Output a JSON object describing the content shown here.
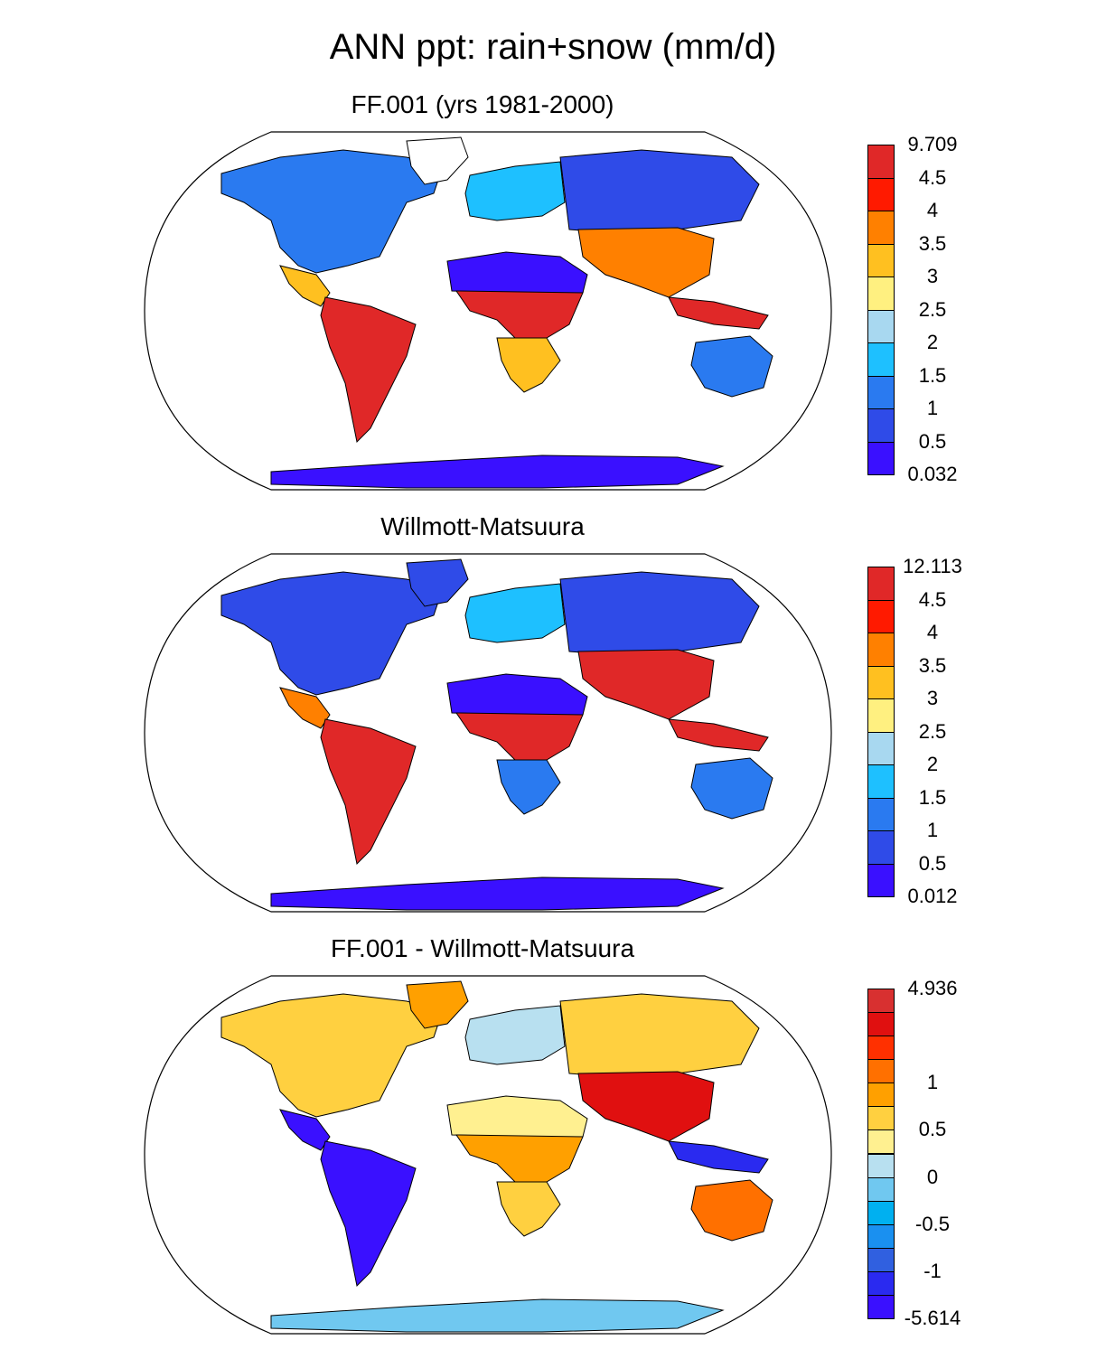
{
  "figure": {
    "title": "ANN ppt: rain+snow (mm/d)"
  },
  "panels": [
    {
      "title": "FF.001 (yrs 1981-2000)",
      "colorbar": {
        "colors": [
          "#3a10ff",
          "#2f4be8",
          "#2a7af0",
          "#1ec0ff",
          "#a8d8f0",
          "#fff080",
          "#ffc020",
          "#ff8000",
          "#ff1a00",
          "#e02828"
        ],
        "labels": [
          "0.032",
          "0.5",
          "1",
          "1.5",
          "2",
          "2.5",
          "3",
          "3.5",
          "4",
          "4.5",
          "9.709"
        ]
      },
      "regions": {
        "north-america": "#2a7af0",
        "greenland": "#ffffff",
        "central-america": "#ffc020",
        "south-america": "#e02828",
        "africa-north": "#3a10ff",
        "africa-central": "#e02828",
        "africa-south": "#ffc020",
        "europe": "#1ec0ff",
        "asia-north": "#2f4be8",
        "asia-south": "#ff8000",
        "indonesia": "#e02828",
        "australia": "#2a7af0",
        "antarctica": "#3a10ff"
      }
    },
    {
      "title": "Willmott-Matsuura",
      "colorbar": {
        "colors": [
          "#3a10ff",
          "#2f4be8",
          "#2a7af0",
          "#1ec0ff",
          "#a8d8f0",
          "#fff080",
          "#ffc020",
          "#ff8000",
          "#ff1a00",
          "#e02828"
        ],
        "labels": [
          "0.012",
          "0.5",
          "1",
          "1.5",
          "2",
          "2.5",
          "3",
          "3.5",
          "4",
          "4.5",
          "12.113"
        ]
      },
      "regions": {
        "north-america": "#2f4be8",
        "greenland": "#2f4be8",
        "central-america": "#ff8000",
        "south-america": "#e02828",
        "africa-north": "#3a10ff",
        "africa-central": "#e02828",
        "africa-south": "#2a7af0",
        "europe": "#1ec0ff",
        "asia-north": "#2f4be8",
        "asia-south": "#e02828",
        "indonesia": "#e02828",
        "australia": "#2a7af0",
        "antarctica": "#3a10ff"
      }
    },
    {
      "title": "FF.001 - Willmott-Matsuura",
      "colorbar": {
        "colors": [
          "#3a10ff",
          "#2a2af0",
          "#3060e0",
          "#1a90f0",
          "#00b0f0",
          "#70c8f0",
          "#b8e0f0",
          "#fff090",
          "#ffd040",
          "#ffa000",
          "#ff7000",
          "#ff3000",
          "#e01010",
          "#d83030"
        ],
        "labels": [
          "-5.614",
          "-1",
          "-0.5",
          "0",
          "0.5",
          "1",
          "4.936"
        ],
        "label_positions": [
          0,
          2,
          4,
          6,
          8,
          10,
          14
        ]
      },
      "regions": {
        "north-america": "#ffd040",
        "greenland": "#ffa000",
        "central-america": "#3a10ff",
        "south-america": "#3a10ff",
        "africa-north": "#fff090",
        "africa-central": "#ffa000",
        "africa-south": "#ffd040",
        "europe": "#b8e0f0",
        "asia-north": "#ffd040",
        "asia-south": "#e01010",
        "indonesia": "#2a2af0",
        "australia": "#ff7000",
        "antarctica": "#70c8f0"
      }
    }
  ]
}
